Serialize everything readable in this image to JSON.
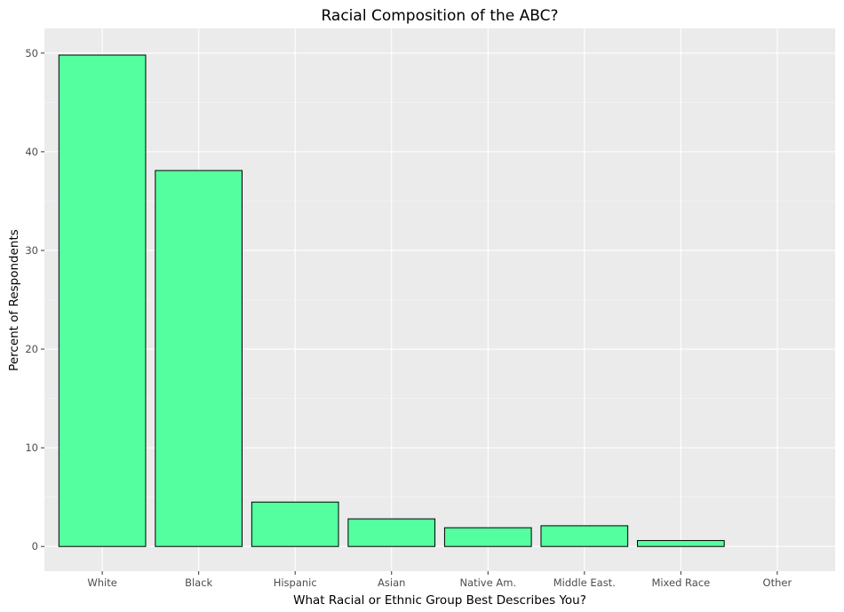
{
  "chart_data": {
    "type": "bar",
    "title": "Racial Composition of the ABC?",
    "xlabel": "What Racial or Ethnic Group Best Describes You?",
    "ylabel": "Percent of Respondents",
    "categories": [
      "White",
      "Black",
      "Hispanic",
      "Asian",
      "Native Am.",
      "Middle East.",
      "Mixed Race",
      "Other"
    ],
    "values": [
      49.8,
      38.1,
      4.5,
      2.8,
      1.9,
      2.1,
      0.6,
      0
    ],
    "ylim": [
      -2.5,
      52.5
    ],
    "yticks": [
      0,
      10,
      20,
      30,
      40,
      50
    ],
    "grid": true,
    "colors": {
      "bar_fill": "#54ff9f",
      "bar_stroke": "#000000",
      "panel_bg": "#ebebeb",
      "grid_major": "#ffffff",
      "grid_minor": "#f5f5f5"
    }
  }
}
